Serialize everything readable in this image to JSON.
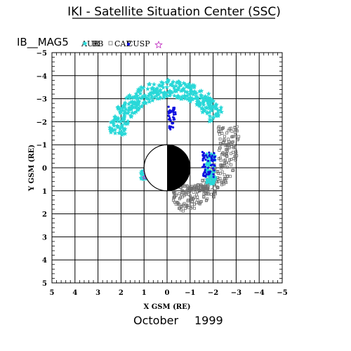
{
  "header": {
    "title": "IKI - Satellite Situation Center (SSC)",
    "satellite": "IB__MAG5",
    "date_month": "October",
    "date_year": "1999"
  },
  "legend": [
    {
      "label": "AUR",
      "symbol": "none",
      "color": "#000000"
    },
    {
      "label": "RB",
      "symbol": "star",
      "color": "#29d8d8"
    },
    {
      "label": "CAP",
      "symbol": "square",
      "color": "#6e6e6e"
    },
    {
      "label": "CUSP",
      "symbol": "star-open",
      "color": "#c02ac0"
    }
  ],
  "chart_data": {
    "type": "scatter",
    "title": "IKI - Satellite Situation Center (SSC)",
    "xlabel": "X GSM (RE)",
    "ylabel": "Y GSM (RE)",
    "xlim": [
      5,
      -5
    ],
    "ylim": [
      -5,
      5
    ],
    "x_ticks": [
      "5",
      "4",
      "3",
      "2",
      "1",
      "0",
      "−1",
      "−2",
      "−3",
      "−4",
      "−5"
    ],
    "y_ticks": [
      "−5",
      "−4",
      "−3",
      "−2",
      "−1",
      "0",
      "1",
      "2",
      "3",
      "4",
      "5"
    ],
    "grid": true,
    "earth": {
      "radius": 1,
      "night_side": "x<0"
    },
    "orbit_points": {
      "min_x": -2.1,
      "max_x": 2.2,
      "min_y": -3.4,
      "max_y": 1.0
    },
    "series": [
      {
        "name": "RB",
        "color": "#29d8d8",
        "region": "outer arc, y from -3.4 to -1.6"
      },
      {
        "name": "CAP",
        "color": "#6e6e6e",
        "region": "sunward arc, x from 0.8 to 2.2"
      },
      {
        "name": "CUSP",
        "color": "#c02ac0",
        "region": "near x 1.0, y 0 to 0.4"
      },
      {
        "name": "",
        "color": "#1010e0",
        "region": "night side, x from 0 to -2.1"
      }
    ]
  }
}
